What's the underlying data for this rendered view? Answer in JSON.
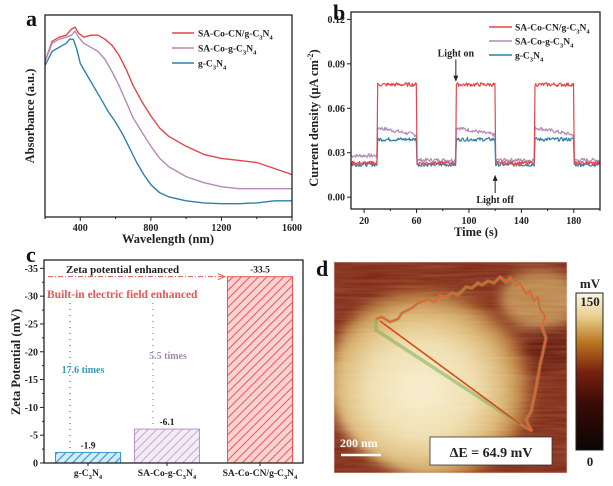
{
  "figure": {
    "panels": [
      "a",
      "b",
      "c",
      "d"
    ]
  },
  "colors": {
    "red": "#e0474c",
    "purple": "#b48ab8",
    "blue": "#2f7fa8",
    "bar_blue": "#5ab1dc",
    "bar_purple": "#c6a6d0",
    "bar_red": "#ef6a6c",
    "annot_red": "#e05a5a",
    "annot_teal": "#3c9ab0",
    "annot_purple": "#a58bb5"
  },
  "chart_data": [
    {
      "panel": "a",
      "type": "line",
      "title": "",
      "xlabel": "Wavelength (nm)",
      "ylabel": "Absorbance (a.u.)",
      "xlim": [
        200,
        1600
      ],
      "ylim": [
        0,
        1
      ],
      "xticks": [
        400,
        800,
        1200,
        1600
      ],
      "xtick_labels": [
        "400",
        "800",
        "1200",
        "1600"
      ],
      "legend_position": "top-right",
      "series": [
        {
          "name": "SA-Co-CN/g-C3N4",
          "label_main": "SA-Co-CN/g-C",
          "sub1": "3",
          "mid": "N",
          "sub2": "4",
          "color_key": "red",
          "x": [
            200,
            240,
            280,
            320,
            350,
            370,
            390,
            420,
            460,
            500,
            540,
            580,
            620,
            660,
            700,
            750,
            800,
            850,
            900,
            1000,
            1100,
            1200,
            1300,
            1400,
            1500,
            1600
          ],
          "y": [
            0.77,
            0.87,
            0.89,
            0.9,
            0.93,
            0.94,
            0.91,
            0.89,
            0.9,
            0.9,
            0.88,
            0.85,
            0.8,
            0.73,
            0.65,
            0.57,
            0.5,
            0.44,
            0.4,
            0.35,
            0.31,
            0.29,
            0.28,
            0.27,
            0.24,
            0.21
          ]
        },
        {
          "name": "SA-Co-g-C3N4",
          "label_main": "SA-Co-g-C",
          "sub1": "3",
          "mid": "N",
          "sub2": "4",
          "color_key": "purple",
          "x": [
            200,
            240,
            280,
            320,
            350,
            370,
            390,
            420,
            460,
            500,
            540,
            580,
            620,
            660,
            700,
            750,
            800,
            850,
            900,
            1000,
            1100,
            1200,
            1300,
            1400,
            1500,
            1600
          ],
          "y": [
            0.77,
            0.86,
            0.88,
            0.89,
            0.9,
            0.92,
            0.89,
            0.86,
            0.84,
            0.82,
            0.78,
            0.72,
            0.65,
            0.57,
            0.49,
            0.42,
            0.35,
            0.29,
            0.25,
            0.2,
            0.17,
            0.15,
            0.14,
            0.14,
            0.14,
            0.14
          ]
        },
        {
          "name": "g-C3N4",
          "label_main": "g-C",
          "sub1": "3",
          "mid": "N",
          "sub2": "4",
          "color_key": "blue",
          "x": [
            200,
            240,
            280,
            320,
            340,
            360,
            380,
            400,
            440,
            480,
            520,
            560,
            600,
            640,
            680,
            720,
            760,
            800,
            850,
            900,
            1000,
            1100,
            1200,
            1300,
            1400,
            1500,
            1600
          ],
          "y": [
            0.75,
            0.82,
            0.84,
            0.86,
            0.88,
            0.88,
            0.83,
            0.76,
            0.7,
            0.64,
            0.58,
            0.52,
            0.47,
            0.41,
            0.34,
            0.27,
            0.21,
            0.16,
            0.12,
            0.1,
            0.08,
            0.07,
            0.066,
            0.066,
            0.07,
            0.08,
            0.08
          ]
        }
      ]
    },
    {
      "panel": "b",
      "type": "line",
      "title": "",
      "xlabel": "Time (s)",
      "ylabel_main": "Current density (μA cm",
      "ylabel_sup": "-2",
      "ylabel_end": ")",
      "xlim": [
        10,
        200
      ],
      "ylim": [
        -0.008,
        0.125
      ],
      "xticks": [
        20,
        60,
        100,
        140,
        180
      ],
      "xtick_labels": [
        "20",
        "60",
        "100",
        "140",
        "180"
      ],
      "yticks": [
        0.0,
        0.03,
        0.06,
        0.09,
        0.12
      ],
      "ytick_labels": [
        "0.00",
        "0.03",
        "0.06",
        "0.09",
        "0.12"
      ],
      "legend_position": "top-right",
      "on_intervals": [
        [
          30,
          60
        ],
        [
          90,
          120
        ],
        [
          150,
          180
        ]
      ],
      "annotations": [
        {
          "text": "Light on",
          "x": 90,
          "y": 0.095,
          "arrow_to": 0.078
        },
        {
          "text": "Light off",
          "x": 120,
          "y": -0.004,
          "arrow_to": 0.015
        }
      ],
      "series": [
        {
          "name": "SA-Co-CN/g-C3N4",
          "label_main": "SA-Co-CN/g-C",
          "sub1": "3",
          "mid": "N",
          "sub2": "4",
          "color_key": "red",
          "dark": 0.023,
          "light": 0.076
        },
        {
          "name": "SA-Co-g-C3N4",
          "label_main": "SA-Co-g-C",
          "sub1": "3",
          "mid": "N",
          "sub2": "4",
          "color_key": "purple",
          "dark": 0.025,
          "light": 0.042
        },
        {
          "name": "g-C3N4",
          "label_main": "g-C",
          "sub1": "3",
          "mid": "N",
          "sub2": "4",
          "color_key": "blue",
          "dark": 0.022,
          "light": 0.039
        }
      ]
    },
    {
      "panel": "c",
      "type": "bar",
      "title": "",
      "xlabel": "",
      "ylabel": "Zeta Potential (mV)",
      "ylim": [
        0,
        -36.5
      ],
      "yticks": [
        0,
        -5,
        -10,
        -15,
        -20,
        -25,
        -30,
        -35
      ],
      "ytick_labels": [
        "0",
        "-5",
        "-10",
        "-15",
        "-20",
        "-25",
        "-30",
        "-35"
      ],
      "categories": [
        {
          "name": "g-C3N4",
          "label_main": "g-C",
          "sub1": "3",
          "mid": "N",
          "sub2": "4"
        },
        {
          "name": "SA-Co-g-C3N4",
          "label_main": "SA-Co-g-C",
          "sub1": "3",
          "mid": "N",
          "sub2": "4"
        },
        {
          "name": "SA-Co-CN/g-C3N4",
          "label_main": "SA-Co-CN/g-C",
          "sub1": "3",
          "mid": "N",
          "sub2": "4"
        }
      ],
      "values": [
        -1.9,
        -6.1,
        -33.5
      ],
      "value_labels": [
        "-1.9",
        "-6.1",
        "-33.5"
      ],
      "bar_color_keys": [
        "bar_blue",
        "bar_purple",
        "bar_red"
      ],
      "annotations": {
        "zeta_text": "Zeta potential enhanced",
        "field_text": "Built-in electric field enhanced",
        "ratio1": "17.6 times",
        "ratio2": "5.5 times"
      }
    },
    {
      "panel": "d",
      "type": "heatmap",
      "title": "",
      "colorbar_unit": "mV",
      "colorbar_max": "150",
      "colorbar_min": "0",
      "scale_bar_label": "200 nm",
      "delta_label": "ΔE = 64.9 mV"
    }
  ]
}
